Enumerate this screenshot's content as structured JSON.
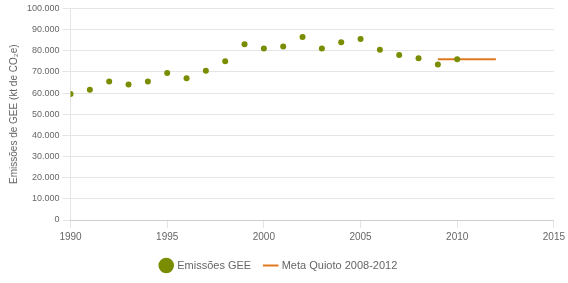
{
  "chart_data": {
    "type": "scatter",
    "ylabel": "Emissões de GEE (kt de CO₂e)",
    "series": [
      {
        "name": "Emissões GEE",
        "type": "scatter",
        "marker": "circle",
        "color": "#7a8c00",
        "x": [
          1990,
          1991,
          1992,
          1993,
          1994,
          1995,
          1996,
          1997,
          1998,
          1999,
          2000,
          2001,
          2002,
          2003,
          2004,
          2005,
          2006,
          2007,
          2008,
          2009,
          2010
        ],
        "values": [
          59500,
          61500,
          65500,
          64000,
          65500,
          69500,
          67000,
          70500,
          75000,
          83000,
          81000,
          82000,
          86500,
          81000,
          84000,
          85500,
          80500,
          78000,
          76500,
          73500,
          76000
        ]
      },
      {
        "name": "Meta Quioto 2008-2012",
        "type": "line",
        "line_style": "solid",
        "color": "#e07820",
        "x": [
          2009,
          2012
        ],
        "values": [
          76000,
          76000
        ]
      }
    ],
    "xlim": [
      1990,
      2015
    ],
    "xticks": [
      1990,
      1995,
      2000,
      2005,
      2010,
      2015
    ],
    "ylim": [
      0,
      100000
    ],
    "yticks": [
      0,
      {
        "value": 10000,
        "label": "10.000"
      },
      {
        "value": 20000,
        "label": "20.000"
      },
      {
        "value": 30000,
        "label": "30.000"
      },
      {
        "value": 40000,
        "label": "40.000"
      },
      {
        "value": 50000,
        "label": "50.000"
      },
      {
        "value": 60000,
        "label": "60.000"
      },
      {
        "value": 70000,
        "label": "70.000"
      },
      {
        "value": 80000,
        "label": "80.000"
      },
      {
        "value": 90000,
        "label": "90.000"
      },
      {
        "value": 100000,
        "label": "100.000"
      }
    ],
    "grid": "y",
    "legend": "bottom"
  }
}
